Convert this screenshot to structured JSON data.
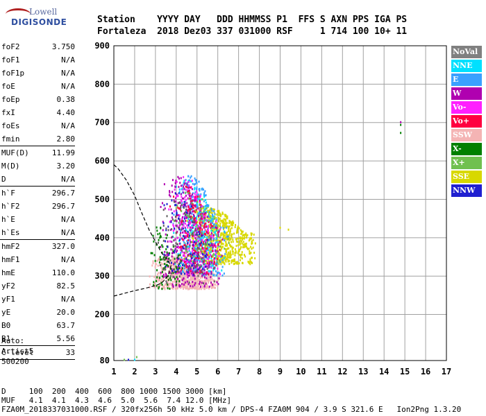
{
  "logo": {
    "line1": "Lowell",
    "line2": "DIGISONDE"
  },
  "header": {
    "line1": "Station    YYYY DAY   DDD HHMMSS P1  FFS S AXN PPS IGA PS",
    "line2": "Fortaleza  2018 Dez03 337 031000 RSF     1 714 100 10+ 11"
  },
  "params": {
    "group1": [
      {
        "name": "foF2",
        "value": "3.750"
      },
      {
        "name": "foF1",
        "value": "N/A"
      },
      {
        "name": "foF1p",
        "value": "N/A"
      },
      {
        "name": "foE",
        "value": "N/A"
      },
      {
        "name": "foEp",
        "value": "0.38"
      },
      {
        "name": "fxI",
        "value": "4.40"
      },
      {
        "name": "foEs",
        "value": "N/A"
      },
      {
        "name": "fmin",
        "value": "2.80"
      }
    ],
    "group2": [
      {
        "name": "MUF(D)",
        "value": "11.99"
      },
      {
        "name": "M(D)",
        "value": "3.20"
      },
      {
        "name": "D",
        "value": "N/A"
      }
    ],
    "group3": [
      {
        "name": "h`F",
        "value": "296.7"
      },
      {
        "name": "h`F2",
        "value": "296.7"
      },
      {
        "name": "h`E",
        "value": "N/A"
      },
      {
        "name": "h`Es",
        "value": "N/A"
      }
    ],
    "group4": [
      {
        "name": "hmF2",
        "value": "327.0"
      },
      {
        "name": "hmF1",
        "value": "N/A"
      },
      {
        "name": "hmE",
        "value": "110.0"
      },
      {
        "name": "yF2",
        "value": "82.5"
      },
      {
        "name": "yF1",
        "value": "N/A"
      },
      {
        "name": "yE",
        "value": "20.0"
      },
      {
        "name": "B0",
        "value": "63.7"
      },
      {
        "name": "B1",
        "value": "5.56"
      }
    ],
    "group5": [
      {
        "name": "C-level",
        "value": "33"
      }
    ]
  },
  "auto": {
    "line1": "Auto:",
    "line2": "Artist5",
    "line3": "500200"
  },
  "legend": [
    {
      "label": "NoVal",
      "color": "#808080"
    },
    {
      "label": "NNE",
      "color": "#00e0ff"
    },
    {
      "label": "E",
      "color": "#3aa0ff"
    },
    {
      "label": "W",
      "color": "#b000b0"
    },
    {
      "label": "Vo-",
      "color": "#ff20ff"
    },
    {
      "label": "Vo+",
      "color": "#ff0040"
    },
    {
      "label": "SSW",
      "color": "#f4b4b4"
    },
    {
      "label": "X-",
      "color": "#008000"
    },
    {
      "label": "X+",
      "color": "#70c050"
    },
    {
      "label": "SSE",
      "color": "#d8d800"
    },
    {
      "label": "NNW",
      "color": "#2020d0"
    }
  ],
  "footer": {
    "line1": "D     100  200  400  600  800 1000 1500 3000 [km]",
    "line2": "MUF   4.1  4.1  4.3  4.6  5.0  5.6  7.4 12.0 [MHz]",
    "line3": "FZA0M_2018337031000.RSF / 320fx256h 50 kHz 5.0 km / DPS-4 FZA0M 904 / 3.9 S 321.6 E   Ion2Png 1.3.20"
  },
  "chart_data": {
    "type": "scatter",
    "title": "",
    "xlabel": "",
    "ylabel": "",
    "xlim": [
      1,
      17
    ],
    "ylim": [
      80,
      900
    ],
    "xticks": [
      1,
      2,
      3,
      4,
      5,
      6,
      7,
      8,
      9,
      10,
      11,
      12,
      13,
      14,
      15,
      16,
      17
    ],
    "yticks": [
      80,
      200,
      300,
      400,
      500,
      600,
      700,
      800,
      900
    ],
    "grid": true,
    "legend_position": "right",
    "profile": {
      "style": "dashed",
      "x": [
        1.0,
        1.5,
        2.0,
        2.5,
        3.0,
        3.3,
        3.6,
        3.75,
        3.6,
        3.3,
        3.0,
        2.7,
        2.3,
        2.0,
        1.6,
        1.2,
        1.0
      ],
      "y": [
        248,
        255,
        262,
        268,
        275,
        282,
        300,
        327,
        340,
        360,
        390,
        420,
        470,
        510,
        550,
        580,
        590
      ]
    },
    "point_clouds": [
      {
        "name": "SSW",
        "xr": [
          2.7,
          6.2
        ],
        "yr": [
          265,
          350
        ],
        "n": 700,
        "color": "#f4b4b4"
      },
      {
        "name": "SSE",
        "xr": [
          4.3,
          8.0
        ],
        "yr": [
          330,
          480
        ],
        "n": 650,
        "color": "#d8d800"
      },
      {
        "name": "NNE",
        "xr": [
          3.8,
          6.4
        ],
        "yr": [
          300,
          560
        ],
        "n": 220,
        "color": "#00e0ff"
      },
      {
        "name": "E",
        "xr": [
          3.8,
          6.6
        ],
        "yr": [
          300,
          560
        ],
        "n": 280,
        "color": "#3aa0ff"
      },
      {
        "name": "W",
        "xr": [
          3.0,
          6.4
        ],
        "yr": [
          270,
          560
        ],
        "n": 380,
        "color": "#b000b0"
      },
      {
        "name": "Vo-",
        "xr": [
          3.6,
          6.2
        ],
        "yr": [
          300,
          560
        ],
        "n": 200,
        "color": "#ff20ff"
      },
      {
        "name": "Vo+",
        "xr": [
          3.6,
          6.2
        ],
        "yr": [
          300,
          540
        ],
        "n": 160,
        "color": "#ff0040"
      },
      {
        "name": "X-",
        "xr": [
          2.6,
          4.4
        ],
        "yr": [
          265,
          430
        ],
        "n": 90,
        "color": "#008000"
      },
      {
        "name": "X+",
        "xr": [
          3.8,
          6.6
        ],
        "yr": [
          320,
          520
        ],
        "n": 90,
        "color": "#70c050"
      },
      {
        "name": "NNW",
        "xr": [
          3.2,
          5.8
        ],
        "yr": [
          300,
          520
        ],
        "n": 90,
        "color": "#2020d0"
      },
      {
        "name": "NoVal",
        "xr": [
          3.0,
          6.0
        ],
        "yr": [
          280,
          500
        ],
        "n": 100,
        "color": "#606060"
      }
    ],
    "extra_points": [
      {
        "x": 14.8,
        "y": 700,
        "color": "#b000b0"
      },
      {
        "x": 14.8,
        "y": 693,
        "color": "#008000"
      },
      {
        "x": 14.8,
        "y": 672,
        "color": "#008000"
      },
      {
        "x": 1.5,
        "y": 81,
        "color": "#70c050"
      },
      {
        "x": 1.7,
        "y": 81,
        "color": "#2020d0"
      },
      {
        "x": 2.0,
        "y": 81,
        "color": "#00e0ff"
      },
      {
        "x": 2.1,
        "y": 88,
        "color": "#70c050"
      },
      {
        "x": 9.4,
        "y": 420,
        "color": "#d8d800"
      },
      {
        "x": 9.0,
        "y": 425,
        "color": "#d8d800"
      }
    ]
  }
}
